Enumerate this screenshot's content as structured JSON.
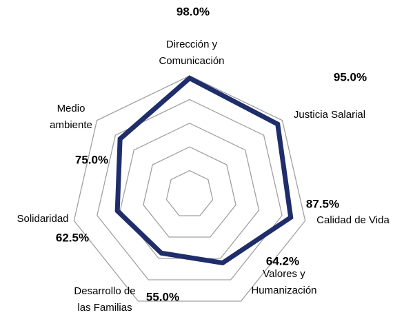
{
  "chart_data": {
    "type": "radar",
    "categories": [
      "Dirección y\nComunicación",
      "Justicia Salarial",
      "Calidad de Vida",
      "Valores y\nHumanización",
      "Desarrollo de\nlas Familias",
      "Solidaridad",
      "Medio\nambiente"
    ],
    "values": [
      98.0,
      95.0,
      87.5,
      64.2,
      55.0,
      62.5,
      75.0
    ],
    "value_labels": [
      "98.0%",
      "95.0%",
      "87.5%",
      "64.2%",
      "55.0%",
      "62.5%",
      "75.0%"
    ],
    "color": "#1f2d6b",
    "rlim": [
      0,
      100
    ],
    "rticks": [
      20,
      40,
      60,
      80,
      100
    ],
    "grid": true
  }
}
